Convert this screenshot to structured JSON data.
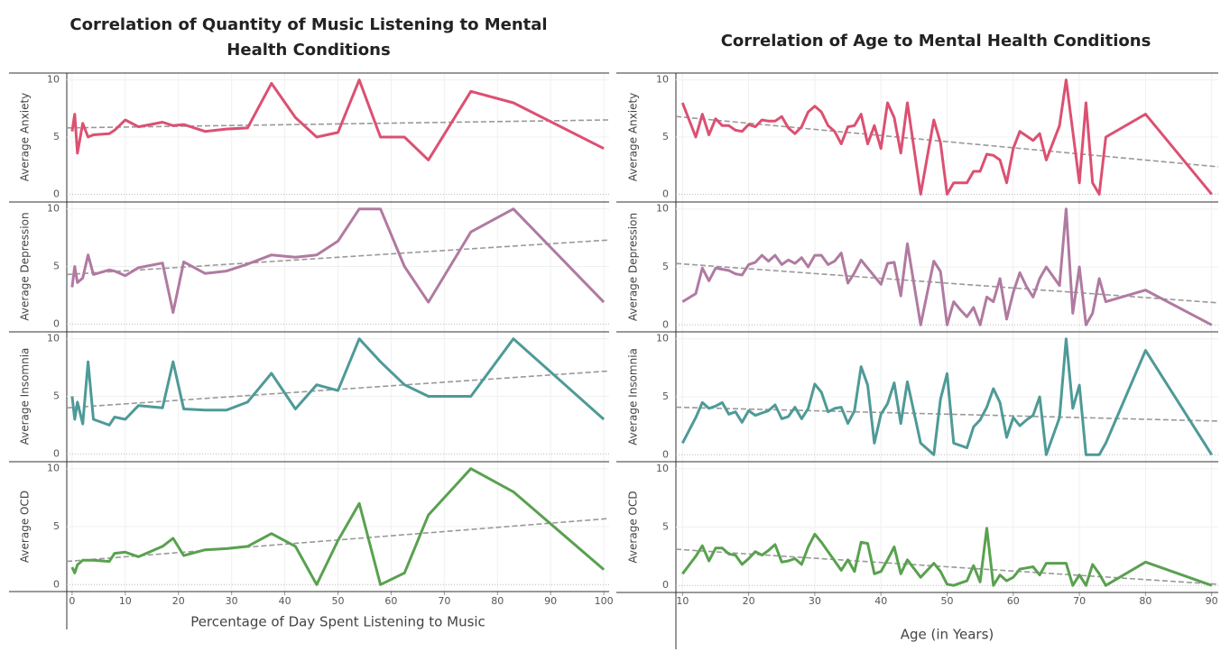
{
  "chart_data": [
    {
      "type": "line",
      "title": "Correlation of Quantity of Music Listening to Mental Health Conditions",
      "x_label": "Percentage of Day Spent Listening to Music",
      "xlim": [
        -1,
        101
      ],
      "xticks": [
        0,
        10,
        20,
        30,
        40,
        50,
        60,
        70,
        80,
        90,
        100
      ],
      "grid": true,
      "x": [
        0,
        0.5,
        1,
        2,
        3,
        4,
        7,
        8,
        10,
        12.5,
        17,
        19,
        21,
        25,
        29,
        33,
        37.5,
        42,
        46,
        50,
        54,
        58,
        62.5,
        67,
        75,
        83,
        100
      ],
      "ylim": [
        -0.6,
        10.6
      ],
      "yticks": [
        0,
        5,
        10
      ],
      "series": [
        {
          "name": "Average Anxiety",
          "color": "#dc5072",
          "values": [
            5.5,
            7,
            3.6,
            6.2,
            5,
            5.2,
            5.3,
            5.6,
            6.5,
            5.9,
            6.3,
            6,
            6.1,
            5.5,
            5.7,
            5.8,
            9.7,
            6.7,
            5,
            5.4,
            10,
            5,
            5,
            3,
            9,
            8,
            4
          ],
          "trend_values": [
            5.8,
            6.5
          ]
        },
        {
          "name": "Average Depression",
          "color": "#b07aa1",
          "values": [
            3.2,
            5,
            3.6,
            4,
            6,
            4.3,
            4.7,
            4.6,
            4.2,
            4.9,
            5.3,
            1,
            5.4,
            4.4,
            4.6,
            5.2,
            6,
            5.8,
            6,
            7.2,
            10,
            10,
            5,
            1.9,
            8,
            10,
            1.9
          ],
          "trend_values": [
            4.3,
            7.3
          ]
        },
        {
          "name": "Average Insomnia",
          "color": "#4e9a97",
          "values": [
            5,
            3,
            4.5,
            2.6,
            8,
            3,
            2.5,
            3.2,
            3,
            4.2,
            4,
            8,
            3.9,
            3.8,
            3.8,
            4.5,
            7,
            3.9,
            6,
            5.5,
            10,
            8,
            6,
            5,
            5,
            10,
            3
          ],
          "trend_values": [
            4,
            7.2
          ]
        },
        {
          "name": "Average OCD",
          "color": "#59a14f",
          "values": [
            1.5,
            1,
            1.7,
            2.1,
            2.1,
            2.1,
            2,
            2.7,
            2.8,
            2.4,
            3.3,
            4,
            2.5,
            3,
            3.1,
            3.3,
            4.4,
            3.3,
            0,
            3.8,
            7,
            0,
            1,
            6,
            10,
            8,
            1.3
          ],
          "trend_values": [
            2,
            5.7
          ]
        }
      ]
    },
    {
      "type": "line",
      "title": "Correlation of Age to Mental Health Conditions",
      "x_label": "Age (in Years)",
      "xlim": [
        9,
        91
      ],
      "xticks": [
        10,
        20,
        30,
        40,
        50,
        60,
        70,
        80,
        90
      ],
      "grid": true,
      "x": [
        10,
        12,
        13,
        14,
        15,
        16,
        17,
        18,
        19,
        20,
        21,
        22,
        23,
        24,
        25,
        26,
        27,
        28,
        29,
        30,
        31,
        32,
        33,
        34,
        35,
        36,
        37,
        38,
        39,
        40,
        41,
        42,
        43,
        44,
        46,
        48,
        49,
        50,
        51,
        52,
        53,
        54,
        55,
        56,
        57,
        58,
        59,
        60,
        61,
        62,
        63,
        64,
        65,
        67,
        68,
        69,
        70,
        71,
        72,
        73,
        74,
        80,
        90
      ],
      "ylim": [
        -0.6,
        10.6
      ],
      "yticks": [
        0,
        5,
        10
      ],
      "series": [
        {
          "name": "Average Anxiety",
          "color": "#dc5072",
          "values": [
            8,
            5,
            7,
            5.2,
            6.6,
            6,
            6,
            5.6,
            5.5,
            6.1,
            5.9,
            6.5,
            6.4,
            6.4,
            6.8,
            5.8,
            5.3,
            5.9,
            7.2,
            7.7,
            7.2,
            6,
            5.5,
            4.4,
            5.9,
            6,
            7,
            4.4,
            6,
            4,
            8,
            6.7,
            3.6,
            8,
            0,
            6.5,
            4.5,
            0,
            1,
            1,
            1,
            2,
            2,
            3.5,
            3.4,
            3,
            1,
            4,
            5.5,
            5.1,
            4.7,
            5.3,
            3,
            6,
            10,
            5.5,
            1,
            8,
            1,
            0,
            5,
            7,
            0
          ],
          "trend_values": [
            6.8,
            2.4
          ]
        },
        {
          "name": "Average Depression",
          "color": "#b07aa1",
          "values": [
            2,
            2.7,
            4.9,
            3.8,
            4.9,
            4.8,
            4.7,
            4.4,
            4.3,
            5.2,
            5.4,
            6,
            5.5,
            6,
            5.2,
            5.6,
            5.3,
            5.8,
            5,
            6,
            6,
            5.2,
            5.5,
            6.2,
            3.6,
            4.5,
            5.6,
            4.9,
            4.2,
            3.5,
            5.3,
            5.4,
            2.5,
            7,
            0,
            5.5,
            4.6,
            0,
            2,
            1.3,
            0.7,
            1.5,
            0,
            2.4,
            2,
            4,
            0.5,
            2.8,
            4.5,
            3.3,
            2.4,
            4,
            5,
            3.4,
            10,
            1,
            5,
            0,
            1,
            4,
            2,
            3,
            0
          ],
          "trend_values": [
            5.3,
            1.9
          ]
        },
        {
          "name": "Average Insomnia",
          "color": "#4e9a97",
          "values": [
            1,
            3.2,
            4.5,
            4,
            4.2,
            4.5,
            3.5,
            3.7,
            2.8,
            3.8,
            3.4,
            3.6,
            3.8,
            4.3,
            3.1,
            3.3,
            4.1,
            3.1,
            4,
            6.1,
            5.4,
            3.7,
            4,
            4.1,
            2.7,
            3.8,
            7.6,
            6,
            1,
            3.5,
            4.4,
            6.2,
            2.7,
            6.3,
            1,
            0,
            4.8,
            7,
            1,
            0.8,
            0.6,
            2.4,
            3,
            4.1,
            5.7,
            4.5,
            1.5,
            3.2,
            2.5,
            3,
            3.4,
            5,
            0,
            3.2,
            10,
            4,
            6,
            0,
            0,
            0,
            1,
            9,
            0
          ],
          "trend_values": [
            4.1,
            2.9
          ]
        },
        {
          "name": "Average OCD",
          "color": "#59a14f",
          "values": [
            1,
            2.5,
            3.4,
            2.1,
            3.2,
            3.2,
            2.7,
            2.6,
            1.8,
            2.3,
            2.9,
            2.6,
            3,
            3.5,
            2,
            2.1,
            2.3,
            1.8,
            3.3,
            4.4,
            3.7,
            2.9,
            2.1,
            1.3,
            2.2,
            1.2,
            3.7,
            3.6,
            1,
            1.2,
            2.2,
            3.3,
            1,
            2.2,
            0.7,
            1.9,
            1.2,
            0.1,
            0,
            0.2,
            0.4,
            1.7,
            0.3,
            4.9,
            0,
            0.9,
            0.4,
            0.7,
            1.4,
            1.5,
            1.6,
            0.9,
            1.9,
            1.9,
            1.9,
            0,
            0.9,
            0,
            1.8,
            1,
            0,
            2,
            0
          ],
          "trend_values": [
            3.1,
            0.1
          ]
        }
      ]
    }
  ]
}
